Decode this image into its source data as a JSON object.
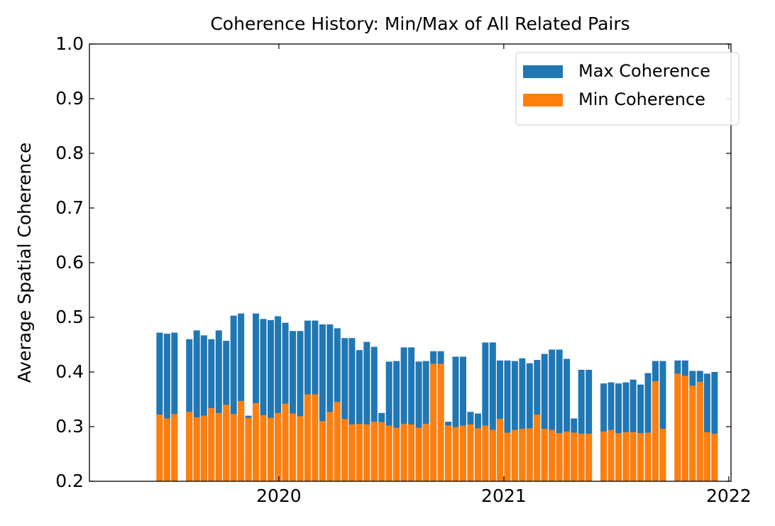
{
  "chart_data": {
    "type": "bar",
    "title": "Coherence History: Min/Max of All Related Pairs",
    "y_label": "Average Spatial Coherence",
    "x": [
      2019.47,
      2019.503,
      2019.536,
      2019.602,
      2019.635,
      2019.667,
      2019.7,
      2019.733,
      2019.766,
      2019.799,
      2019.832,
      2019.865,
      2019.898,
      2019.931,
      2019.964,
      2019.996,
      2020.029,
      2020.062,
      2020.095,
      2020.128,
      2020.161,
      2020.194,
      2020.227,
      2020.26,
      2020.293,
      2020.325,
      2020.358,
      2020.391,
      2020.424,
      2020.457,
      2020.49,
      2020.523,
      2020.556,
      2020.589,
      2020.622,
      2020.654,
      2020.687,
      2020.72,
      2020.753,
      2020.786,
      2020.819,
      2020.852,
      2020.885,
      2020.918,
      2020.951,
      2020.983,
      2021.016,
      2021.049,
      2021.082,
      2021.115,
      2021.148,
      2021.181,
      2021.214,
      2021.247,
      2021.28,
      2021.312,
      2021.345,
      2021.378,
      2021.444,
      2021.477,
      2021.51,
      2021.543,
      2021.575,
      2021.608,
      2021.641,
      2021.674,
      2021.707,
      2021.773,
      2021.806,
      2021.839,
      2021.872,
      2021.904,
      2021.937
    ],
    "series": [
      {
        "name": "Max Coherence",
        "color": "#1f77b4",
        "values": [
          0.472,
          0.47,
          0.472,
          0.46,
          0.476,
          0.467,
          0.46,
          0.476,
          0.457,
          0.503,
          0.507,
          0.32,
          0.507,
          0.497,
          0.495,
          0.502,
          0.49,
          0.475,
          0.475,
          0.494,
          0.494,
          0.487,
          0.487,
          0.48,
          0.462,
          0.462,
          0.44,
          0.455,
          0.446,
          0.325,
          0.419,
          0.42,
          0.445,
          0.445,
          0.419,
          0.42,
          0.438,
          0.438,
          0.309,
          0.428,
          0.428,
          0.327,
          0.324,
          0.454,
          0.454,
          0.421,
          0.421,
          0.42,
          0.425,
          0.416,
          0.422,
          0.433,
          0.441,
          0.441,
          0.424,
          0.315,
          0.404,
          0.404,
          0.379,
          0.381,
          0.379,
          0.381,
          0.386,
          0.377,
          0.398,
          0.42,
          0.42,
          0.421,
          0.421,
          0.402,
          0.402,
          0.397,
          0.4
        ]
      },
      {
        "name": "Min Coherence",
        "color": "#ff7f0e",
        "values": [
          0.322,
          0.315,
          0.323,
          0.327,
          0.317,
          0.32,
          0.334,
          0.325,
          0.34,
          0.323,
          0.347,
          0.316,
          0.343,
          0.321,
          0.316,
          0.325,
          0.342,
          0.324,
          0.319,
          0.359,
          0.359,
          0.31,
          0.327,
          0.345,
          0.314,
          0.304,
          0.305,
          0.304,
          0.309,
          0.308,
          0.302,
          0.298,
          0.305,
          0.304,
          0.298,
          0.305,
          0.415,
          0.415,
          0.302,
          0.299,
          0.302,
          0.304,
          0.297,
          0.302,
          0.294,
          0.314,
          0.289,
          0.294,
          0.296,
          0.297,
          0.322,
          0.296,
          0.294,
          0.288,
          0.291,
          0.289,
          0.287,
          0.287,
          0.291,
          0.294,
          0.288,
          0.29,
          0.29,
          0.288,
          0.289,
          0.383,
          0.296,
          0.397,
          0.393,
          0.375,
          0.382,
          0.29,
          0.287
        ]
      }
    ],
    "xlim": [
      2019.158,
      2022.01
    ],
    "xticks": [
      2020,
      2021,
      2022
    ],
    "ylim": [
      0.2,
      1.0
    ],
    "yticks": [
      0.2,
      0.3,
      0.4,
      0.5,
      0.6,
      0.7,
      0.8,
      0.9,
      {
        "value": 1.0,
        "label": "1.0"
      }
    ],
    "legend": "upper right"
  }
}
